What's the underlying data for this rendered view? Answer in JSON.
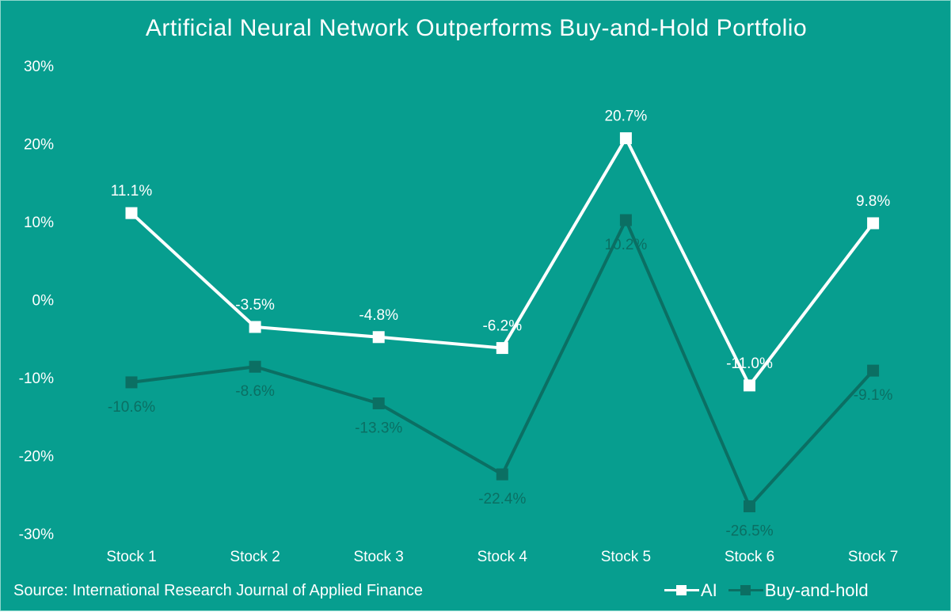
{
  "chart_data": {
    "type": "line",
    "title": "Artificial Neural Network Outperforms Buy-and-Hold Portfolio",
    "categories": [
      "Stock 1",
      "Stock 2",
      "Stock 3",
      "Stock 4",
      "Stock 5",
      "Stock 6",
      "Stock 7"
    ],
    "y_ticks": [
      "30%",
      "20%",
      "10%",
      "0%",
      "-10%",
      "-20%",
      "-30%"
    ],
    "ylim": [
      -30,
      30
    ],
    "grid": false,
    "legend_position": "bottom-right",
    "series": [
      {
        "name": "AI",
        "color": "#ffffff",
        "values": [
          11.1,
          -3.5,
          -4.8,
          -6.2,
          20.7,
          -11.0,
          9.8
        ],
        "labels": [
          "11.1%",
          "-3.5%",
          "-4.8%",
          "-6.2%",
          "20.7%",
          "-11.0%",
          "9.8%"
        ]
      },
      {
        "name": "Buy-and-hold",
        "color": "#0b6f63",
        "values": [
          -10.6,
          -8.6,
          -13.3,
          -22.4,
          10.2,
          -26.5,
          -9.1
        ],
        "labels": [
          "-10.6%",
          "-8.6%",
          "-13.3%",
          "-22.4%",
          "10.2%",
          "-26.5%",
          "-9.1%"
        ]
      }
    ],
    "source": "Source: International Research Journal of Applied Finance"
  },
  "colors": {
    "background": "#079e8f",
    "text": "#ffffff",
    "border": "#8fd6cc"
  }
}
